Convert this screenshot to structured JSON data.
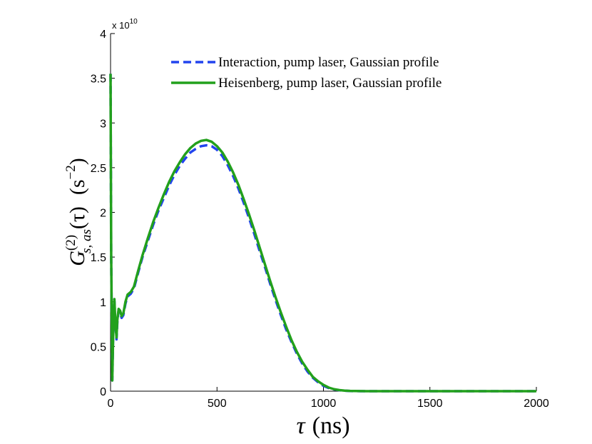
{
  "chart_data": {
    "type": "line",
    "title": "",
    "xlabel": "τ (ns)",
    "ylabel": "G(2)s,as(τ) (s−2)",
    "ylabel_parts": {
      "symbol": "G",
      "superscript": "(2)",
      "subscript": "s, as",
      "argument": "(τ)",
      "units": "(s",
      "units_exponent": "−2",
      "units_close": ")"
    },
    "xlabel_parts": {
      "symbol": "τ",
      "units": "(ns)"
    },
    "y_multiplier": "x 10",
    "y_multiplier_exponent": "10",
    "xlim": [
      0,
      2000
    ],
    "ylim": [
      0,
      4
    ],
    "xticks": [
      0,
      500,
      1000,
      1500,
      2000
    ],
    "xtick_labels": [
      "0",
      "500",
      "1000",
      "1500",
      "2000"
    ],
    "yticks": [
      0,
      0.5,
      1,
      1.5,
      2,
      2.5,
      3,
      3.5,
      4
    ],
    "ytick_labels": [
      "0",
      "0.5",
      "1",
      "1.5",
      "2",
      "2.5",
      "3",
      "3.5",
      "4"
    ],
    "grid": false,
    "legend_position": "top-right",
    "series": [
      {
        "name": "Interaction, pump laser, Gaussian profile",
        "color": "#2244ee",
        "style": "dashed",
        "x": [
          0,
          3,
          8,
          12,
          18,
          22,
          28,
          32,
          38,
          45,
          52,
          60,
          70,
          80,
          95,
          110,
          130,
          150,
          175,
          200,
          225,
          250,
          275,
          300,
          325,
          350,
          375,
          400,
          425,
          450,
          475,
          500,
          525,
          550,
          575,
          600,
          625,
          650,
          675,
          700,
          725,
          750,
          775,
          800,
          825,
          850,
          875,
          900,
          925,
          950,
          975,
          1000,
          1025,
          1050,
          1075,
          1100,
          1125,
          1150,
          1175,
          1200,
          1250,
          1300,
          1400,
          1500,
          1600,
          1700,
          1800,
          1900,
          2000
        ],
        "values": [
          3.55,
          1.5,
          0.12,
          0.6,
          1.02,
          0.78,
          0.58,
          0.78,
          0.9,
          0.88,
          0.82,
          0.85,
          0.98,
          1.06,
          1.09,
          1.15,
          1.33,
          1.5,
          1.68,
          1.86,
          2.02,
          2.16,
          2.3,
          2.42,
          2.52,
          2.6,
          2.67,
          2.71,
          2.74,
          2.75,
          2.74,
          2.7,
          2.63,
          2.53,
          2.41,
          2.27,
          2.11,
          1.94,
          1.76,
          1.57,
          1.39,
          1.2,
          1.02,
          0.85,
          0.69,
          0.55,
          0.42,
          0.31,
          0.22,
          0.15,
          0.1,
          0.06,
          0.035,
          0.02,
          0.01,
          0.005,
          0.002,
          0.001,
          0.0005,
          0.0002,
          0.0001,
          0,
          0,
          0,
          0,
          0,
          0,
          0,
          0
        ]
      },
      {
        "name": "Heisenberg, pump laser, Gaussian profile",
        "color": "#22a01c",
        "style": "solid",
        "x": [
          0,
          3,
          8,
          12,
          18,
          22,
          28,
          32,
          38,
          45,
          52,
          60,
          70,
          80,
          95,
          110,
          130,
          150,
          175,
          200,
          225,
          250,
          275,
          300,
          325,
          350,
          375,
          400,
          425,
          450,
          475,
          500,
          525,
          550,
          575,
          600,
          625,
          650,
          675,
          700,
          725,
          750,
          775,
          800,
          825,
          850,
          875,
          900,
          925,
          950,
          975,
          1000,
          1025,
          1050,
          1075,
          1100,
          1125,
          1150,
          1175,
          1200,
          1250,
          1300,
          1400,
          1500,
          1600,
          1700,
          1800,
          1900,
          2000
        ],
        "values": [
          3.55,
          1.5,
          0.12,
          0.6,
          1.03,
          0.8,
          0.6,
          0.8,
          0.92,
          0.9,
          0.84,
          0.87,
          1.0,
          1.08,
          1.11,
          1.17,
          1.35,
          1.52,
          1.71,
          1.89,
          2.05,
          2.2,
          2.34,
          2.46,
          2.56,
          2.65,
          2.72,
          2.77,
          2.8,
          2.81,
          2.79,
          2.74,
          2.67,
          2.57,
          2.45,
          2.31,
          2.15,
          1.98,
          1.8,
          1.61,
          1.42,
          1.23,
          1.05,
          0.88,
          0.72,
          0.57,
          0.44,
          0.33,
          0.24,
          0.16,
          0.11,
          0.07,
          0.04,
          0.022,
          0.012,
          0.006,
          0.003,
          0.0015,
          0.0007,
          0.0003,
          0.0001,
          0,
          0,
          0,
          0,
          0,
          0,
          0,
          0
        ]
      }
    ]
  }
}
